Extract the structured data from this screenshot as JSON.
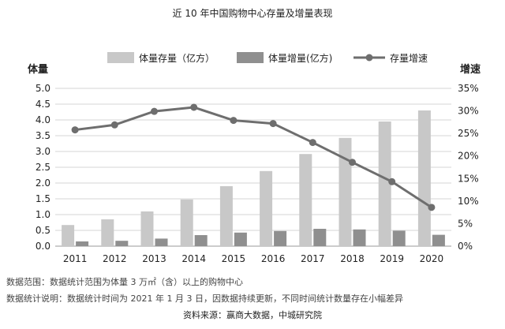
{
  "chart_data": {
    "type": "bar+line",
    "title": "近 10 年中国购物中心存量及增量表现",
    "categories": [
      "2011",
      "2012",
      "2013",
      "2014",
      "2015",
      "2016",
      "2017",
      "2018",
      "2019",
      "2020"
    ],
    "series": [
      {
        "name": "体量存量（亿方）",
        "type": "bar",
        "axis": "left",
        "color": "#c8c8c8",
        "values": [
          0.67,
          0.85,
          1.1,
          1.48,
          1.9,
          2.38,
          2.92,
          3.43,
          3.95,
          4.3
        ]
      },
      {
        "name": "体量增量(亿方)",
        "type": "bar",
        "axis": "left",
        "color": "#8f8f8f",
        "values": [
          0.15,
          0.17,
          0.24,
          0.35,
          0.43,
          0.48,
          0.55,
          0.53,
          0.49,
          0.36
        ]
      },
      {
        "name": "存量增速",
        "type": "line",
        "axis": "right",
        "color": "#6e6e6e",
        "values": [
          25.8,
          26.9,
          29.9,
          30.8,
          27.9,
          27.2,
          23.0,
          18.6,
          14.3,
          8.6
        ]
      }
    ],
    "ylabel_left": "体量",
    "ylabel_right": "增速",
    "ylim_left": [
      0,
      5
    ],
    "yticks_left": [
      "0.0",
      "0.5",
      "1.0",
      "1.5",
      "2.0",
      "2.5",
      "3.0",
      "3.5",
      "4.0",
      "4.5",
      "5.0"
    ],
    "ylim_right": [
      0,
      35
    ],
    "yticks_right": [
      "0%",
      "5%",
      "10%",
      "15%",
      "20%",
      "25%",
      "30%",
      "35%"
    ],
    "grid": true,
    "legend_position": "top"
  },
  "notes": {
    "range": "数据范围：数据统计范围为体量 3 万㎡（含）以上的购物中心",
    "explain": "数据统计说明：数据统计时间为 2021 年 1 月 3 日，因数据持续更新，不同时间统计数量存在小幅差异"
  },
  "source": "资料来源：赢商大数据，中城研究院"
}
